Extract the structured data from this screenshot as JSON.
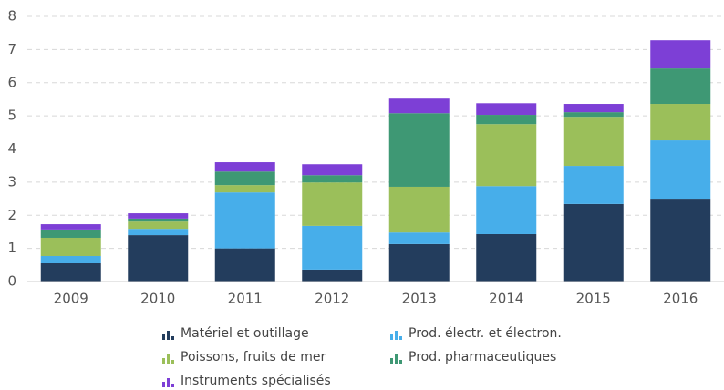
{
  "chart_data": {
    "type": "stacked_bar",
    "categories": [
      "2009",
      "2010",
      "2011",
      "2012",
      "2013",
      "2014",
      "2015",
      "2016"
    ],
    "series": [
      {
        "name": "Matériel et outillage",
        "color": "#233d5d",
        "values": [
          0.55,
          1.4,
          1.0,
          0.36,
          1.13,
          1.43,
          2.34,
          2.5
        ]
      },
      {
        "name": "Prod. électr. et électron.",
        "color": "#47aeea",
        "values": [
          0.22,
          0.19,
          1.69,
          1.32,
          0.35,
          1.45,
          1.15,
          1.76
        ]
      },
      {
        "name": "Poissons, fruits de mer",
        "color": "#9bbf5a",
        "values": [
          0.55,
          0.22,
          0.22,
          1.31,
          1.38,
          1.87,
          1.48,
          1.1
        ]
      },
      {
        "name": "Prod. pharmaceutiques",
        "color": "#3e9874",
        "values": [
          0.25,
          0.09,
          0.41,
          0.22,
          2.22,
          0.28,
          0.14,
          1.07
        ]
      },
      {
        "name": "Instruments spécialisés",
        "color": "#7d3fd6",
        "values": [
          0.16,
          0.16,
          0.28,
          0.33,
          0.44,
          0.35,
          0.25,
          0.85
        ]
      }
    ],
    "ylim": [
      0,
      8
    ],
    "yticks": [
      0,
      1,
      2,
      3,
      4,
      5,
      6,
      7,
      8
    ],
    "grid": true
  }
}
